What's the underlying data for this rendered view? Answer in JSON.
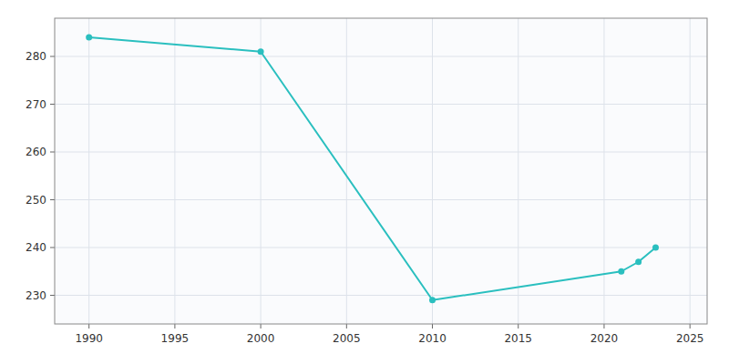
{
  "chart_data": {
    "type": "line",
    "x": [
      1990,
      2000,
      2010,
      2021,
      2022,
      2023
    ],
    "values": [
      284,
      281,
      229,
      235,
      237,
      240
    ],
    "color": "#2abfbf",
    "marker": "circle",
    "xlim": [
      1988,
      2026
    ],
    "ylim": [
      224,
      288
    ],
    "xticks": [
      1990,
      1995,
      2000,
      2005,
      2010,
      2015,
      2020,
      2025
    ],
    "yticks": [
      230,
      240,
      250,
      260,
      270,
      280
    ],
    "grid": true
  }
}
